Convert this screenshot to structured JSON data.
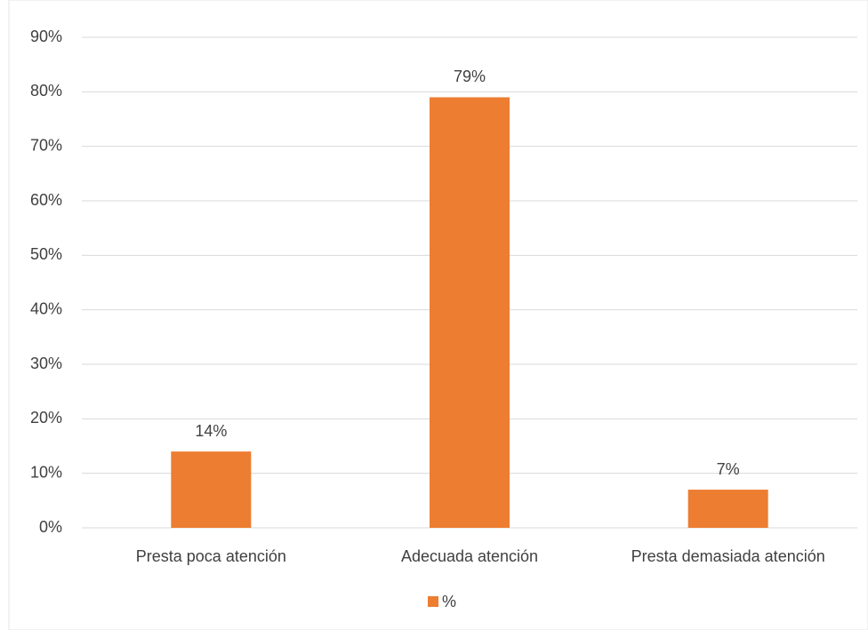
{
  "chart_data": {
    "type": "bar",
    "categories": [
      "Presta poca atención",
      "Adecuada atención",
      "Presta demasiada atención"
    ],
    "series": [
      {
        "name": "%",
        "color": "#ed7d31",
        "values": [
          14,
          79,
          7
        ],
        "value_labels": [
          "14%",
          "79%",
          "7%"
        ]
      }
    ],
    "ylim": [
      0,
      90
    ],
    "yticks": [
      {
        "value": 0,
        "label": "0%"
      },
      {
        "value": 10,
        "label": "10%"
      },
      {
        "value": 20,
        "label": "20%"
      },
      {
        "value": 30,
        "label": "30%"
      },
      {
        "value": 40,
        "label": "40%"
      },
      {
        "value": 50,
        "label": "50%"
      },
      {
        "value": 60,
        "label": "60%"
      },
      {
        "value": 70,
        "label": "70%"
      },
      {
        "value": 80,
        "label": "80%"
      },
      {
        "value": 90,
        "label": "90%"
      }
    ],
    "grid": true,
    "legend": "bottom"
  }
}
